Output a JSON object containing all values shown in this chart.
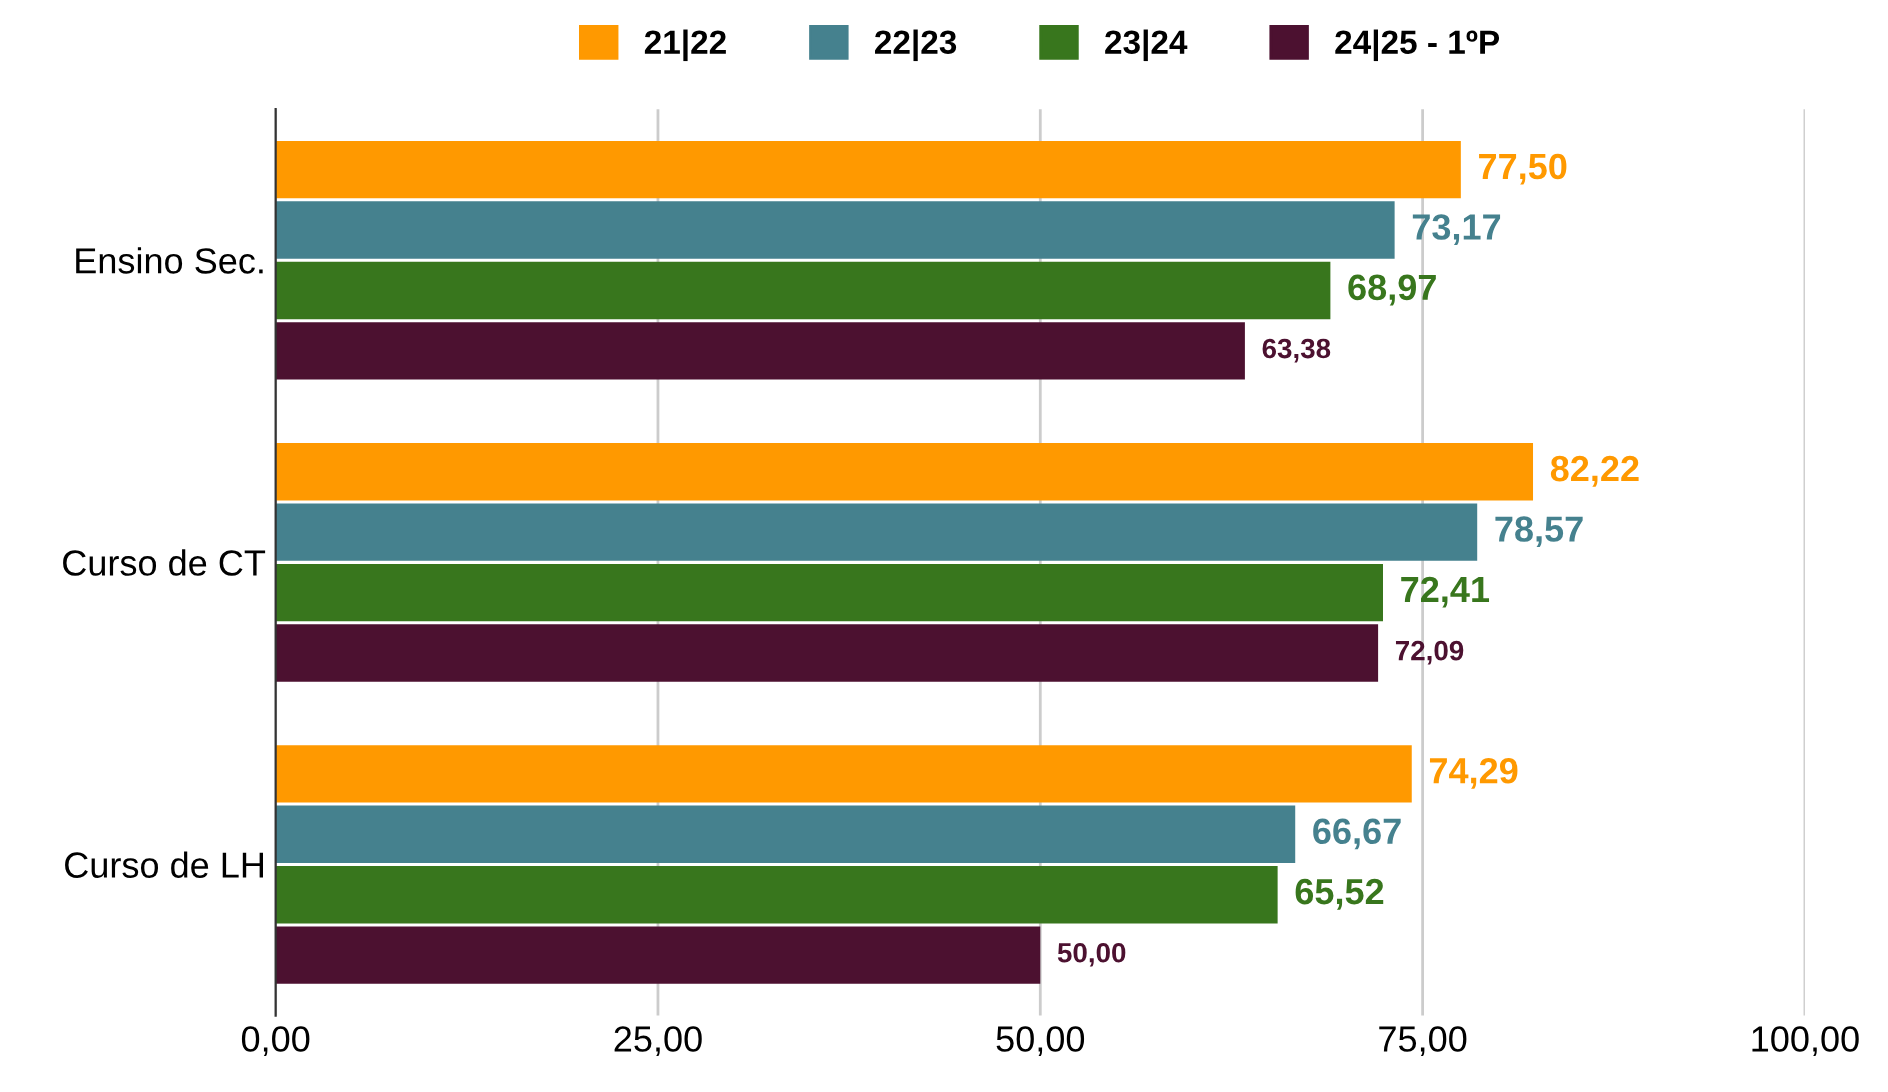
{
  "chart_data": {
    "type": "bar",
    "orientation": "horizontal",
    "categories": [
      "Ensino Sec.",
      "Curso de CT",
      "Curso de LH"
    ],
    "series": [
      {
        "name": "21|22",
        "color": "#ff9900",
        "values": [
          77.5,
          82.22,
          74.29
        ],
        "value_labels": [
          "77,50",
          "82,22",
          "74,29"
        ]
      },
      {
        "name": "22|23",
        "color": "#45818e",
        "values": [
          73.17,
          78.57,
          66.67
        ],
        "value_labels": [
          "73,17",
          "78,57",
          "66,67"
        ]
      },
      {
        "name": "23|24",
        "color": "#38761d",
        "values": [
          68.97,
          72.41,
          65.52
        ],
        "value_labels": [
          "68,97",
          "72,41",
          "65,52"
        ]
      },
      {
        "name": "24|25 - 1ºP",
        "color": "#4c1130",
        "values": [
          63.38,
          72.09,
          50.0
        ],
        "value_labels": [
          "63,38",
          "72,09",
          "50,00"
        ]
      }
    ],
    "xlim": [
      0,
      100
    ],
    "xticks": [
      {
        "value": 0,
        "label": "0,00"
      },
      {
        "value": 25,
        "label": "25,00"
      },
      {
        "value": 50,
        "label": "50,00"
      },
      {
        "value": 75,
        "label": "75,00"
      },
      {
        "value": 100,
        "label": "100,00"
      }
    ],
    "grid": "x",
    "legend": "top"
  }
}
